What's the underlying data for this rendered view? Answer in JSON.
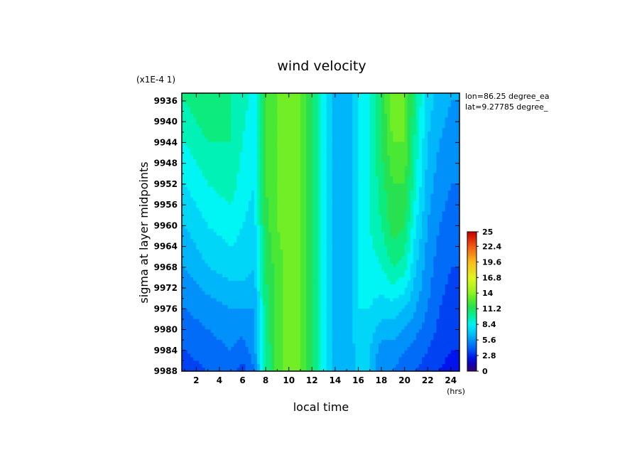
{
  "chart_data": {
    "type": "heatmap",
    "title": "wind velocity",
    "xlabel": "local time",
    "ylabel": "sigma at layer midpoints",
    "x_unit": "(hrs)",
    "y_multiplier": "(x1E-4 1)",
    "annotations": [
      "lon=86.25 degree_ea",
      "lat=9.27785 degree_"
    ],
    "x_ticks": [
      "2",
      "4",
      "6",
      "8",
      "10",
      "12",
      "14",
      "16",
      "18",
      "20",
      "22",
      "24"
    ],
    "y_ticks": [
      "9936",
      "9940",
      "9944",
      "9948",
      "9952",
      "9956",
      "9960",
      "9964",
      "9968",
      "9972",
      "9976",
      "9980",
      "9984",
      "9988"
    ],
    "xlim": [
      0.75,
      24.75
    ],
    "ylim": [
      9934.5,
      9988
    ],
    "colorbar": {
      "range": [
        0,
        25
      ],
      "tick_labels": [
        "25",
        "22.4",
        "19.6",
        "16.8",
        "14",
        "11.2",
        "8.4",
        "5.6",
        "2.8",
        "0"
      ]
    },
    "x": [
      1,
      3,
      5,
      6,
      7,
      8,
      9,
      10,
      11,
      12,
      13,
      14,
      15,
      16,
      17,
      18,
      19,
      20,
      21,
      22,
      23,
      24
    ],
    "y": [
      9936,
      9944,
      9952,
      9960,
      9968,
      9976,
      9984,
      9988
    ],
    "z": [
      [
        10,
        11,
        10,
        9.5,
        8.5,
        12,
        13,
        13.5,
        13,
        11,
        8.5,
        6.5,
        6,
        8,
        9,
        11,
        14,
        13,
        10,
        7.5,
        6.5,
        6
      ],
      [
        9,
        10,
        10,
        9,
        8,
        12,
        13,
        13.5,
        13,
        11,
        8.5,
        6.5,
        6,
        8,
        9,
        11,
        13,
        13,
        9.5,
        7,
        6,
        5.5
      ],
      [
        8,
        9,
        9.5,
        8.5,
        8,
        12,
        13,
        13.5,
        13,
        11,
        8.5,
        6.5,
        6,
        8,
        9,
        10.5,
        12,
        12,
        9,
        6.5,
        5.5,
        5
      ],
      [
        7,
        8,
        8.5,
        8,
        7.5,
        11.5,
        13,
        13.5,
        13,
        11,
        8.5,
        6.5,
        6,
        8,
        9,
        10,
        11.5,
        11,
        8,
        6,
        5,
        4.5
      ],
      [
        6,
        7,
        7.5,
        7.5,
        7,
        11,
        12.5,
        13.5,
        13,
        11,
        8.5,
        6.5,
        6,
        8,
        8.5,
        9,
        10,
        9.5,
        7,
        5.5,
        4.5,
        4
      ],
      [
        5,
        5.5,
        6,
        6,
        6,
        10.5,
        12.5,
        13.5,
        13,
        11,
        8.5,
        6.5,
        6,
        8,
        8,
        7.5,
        7.5,
        7,
        6,
        5,
        4,
        3.5
      ],
      [
        4,
        4.5,
        5,
        4.5,
        5.5,
        10,
        12.5,
        13.5,
        13,
        11,
        8.5,
        6.5,
        6,
        7.5,
        7,
        5.5,
        5.5,
        5,
        4.5,
        4,
        3.5,
        3
      ],
      [
        3.5,
        4,
        4.5,
        3.5,
        5,
        10,
        12.5,
        13.5,
        13,
        11,
        8.5,
        6.5,
        6,
        7.5,
        7,
        5,
        5,
        4.5,
        4,
        3.5,
        3,
        2.5
      ]
    ],
    "grid": false,
    "legend": "colorbar right"
  }
}
